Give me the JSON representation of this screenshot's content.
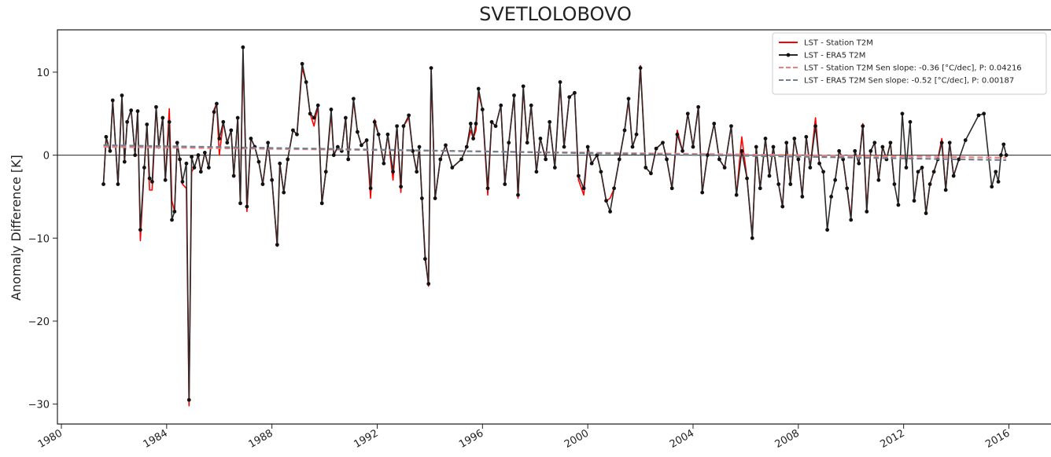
{
  "chart_data": {
    "type": "line",
    "title": "SVETLOLOBOVO",
    "y_label": "Anomaly Difference [K]",
    "x": [
      1981.6,
      1981.7,
      1981.85,
      1981.95,
      1982.15,
      1982.3,
      1982.4,
      1982.5,
      1982.65,
      1982.8,
      1982.9,
      1983.0,
      1983.15,
      1983.25,
      1983.35,
      1983.45,
      1983.6,
      1983.7,
      1983.85,
      1983.95,
      1984.1,
      1984.2,
      1984.3,
      1984.4,
      1984.5,
      1984.6,
      1984.75,
      1984.85,
      1984.95,
      1985.05,
      1985.2,
      1985.3,
      1985.45,
      1985.6,
      1985.8,
      1985.9,
      1986.0,
      1986.15,
      1986.3,
      1986.45,
      1986.55,
      1986.7,
      1986.8,
      1986.9,
      1987.05,
      1987.2,
      1987.35,
      1987.5,
      1987.65,
      1987.85,
      1988.0,
      1988.2,
      1988.3,
      1988.45,
      1988.6,
      1988.8,
      1988.95,
      1989.15,
      1989.3,
      1989.45,
      1989.6,
      1989.75,
      1989.9,
      1990.05,
      1990.25,
      1990.35,
      1990.5,
      1990.65,
      1990.8,
      1990.9,
      1991.1,
      1991.25,
      1991.4,
      1991.6,
      1991.75,
      1991.9,
      1992.05,
      1992.25,
      1992.4,
      1992.6,
      1992.75,
      1992.9,
      1993.0,
      1993.2,
      1993.35,
      1993.5,
      1993.6,
      1993.7,
      1993.82,
      1993.95,
      1994.05,
      1994.2,
      1994.4,
      1994.6,
      1994.85,
      1995.2,
      1995.4,
      1995.55,
      1995.65,
      1995.75,
      1995.85,
      1996.0,
      1996.2,
      1996.35,
      1996.5,
      1996.7,
      1996.85,
      1997.0,
      1997.2,
      1997.35,
      1997.55,
      1997.7,
      1997.85,
      1998.05,
      1998.2,
      1998.4,
      1998.55,
      1998.75,
      1998.95,
      1999.1,
      1999.3,
      1999.5,
      1999.65,
      1999.85,
      2000.0,
      2000.15,
      2000.35,
      2000.5,
      2000.7,
      2000.85,
      2001.0,
      2001.2,
      2001.4,
      2001.55,
      2001.7,
      2001.85,
      2002.0,
      2002.2,
      2002.4,
      2002.6,
      2002.85,
      2003.0,
      2003.2,
      2003.4,
      2003.6,
      2003.8,
      2004.0,
      2004.2,
      2004.35,
      2004.55,
      2004.8,
      2005.0,
      2005.2,
      2005.45,
      2005.65,
      2005.85,
      2006.05,
      2006.25,
      2006.4,
      2006.55,
      2006.75,
      2006.9,
      2007.05,
      2007.25,
      2007.4,
      2007.55,
      2007.7,
      2007.85,
      2008.0,
      2008.15,
      2008.3,
      2008.45,
      2008.65,
      2008.8,
      2008.95,
      2009.1,
      2009.25,
      2009.4,
      2009.55,
      2009.7,
      2009.85,
      2010.0,
      2010.15,
      2010.3,
      2010.45,
      2010.6,
      2010.75,
      2010.9,
      2011.05,
      2011.2,
      2011.35,
      2011.5,
      2011.65,
      2011.8,
      2011.95,
      2012.1,
      2012.25,
      2012.4,
      2012.55,
      2012.7,
      2012.85,
      2013.0,
      2013.15,
      2013.3,
      2013.45,
      2013.6,
      2013.75,
      2013.9,
      2014.1,
      2014.35,
      2014.85,
      2015.05,
      2015.35,
      2015.5,
      2015.6,
      2015.7,
      2015.8,
      2015.9
    ],
    "series": [
      {
        "name": "LST - Station T2M",
        "color": "#ff0000",
        "markers": false,
        "values": [
          -3.5,
          2.0,
          0.5,
          6.5,
          -3.5,
          7.0,
          -0.8,
          4.0,
          5.5,
          0.0,
          5.3,
          -10.3,
          -1.5,
          3.7,
          -4.2,
          -4.2,
          5.8,
          1.0,
          4.5,
          -3.0,
          5.6,
          -5.5,
          -6.8,
          1.5,
          -0.5,
          -3.5,
          -4.0,
          -30.2,
          -2.0,
          -1.5,
          0.0,
          -2.0,
          0.3,
          -1.5,
          5.5,
          6.2,
          0.0,
          4.0,
          1.5,
          3.0,
          -2.5,
          4.5,
          -5.8,
          12.3,
          -6.8,
          2.0,
          1.0,
          -0.8,
          -3.5,
          1.5,
          -3.0,
          -11.0,
          -1.0,
          -4.5,
          -0.5,
          3.0,
          2.5,
          10.5,
          8.8,
          5.0,
          3.5,
          6.0,
          -5.8,
          -2.0,
          5.0,
          0.0,
          1.0,
          0.5,
          4.5,
          -0.5,
          6.5,
          2.8,
          1.2,
          1.8,
          -5.2,
          4.3,
          2.5,
          -1.0,
          2.5,
          -3.0,
          3.5,
          -4.5,
          3.5,
          4.5,
          0.5,
          -2.0,
          1.0,
          -5.2,
          -12.0,
          -15.8,
          10.2,
          -5.2,
          -0.5,
          1.2,
          -1.5,
          -0.5,
          1.0,
          3.0,
          2.0,
          3.0,
          7.5,
          5.5,
          -4.8,
          4.0,
          3.5,
          6.0,
          -3.5,
          1.5,
          7.2,
          -5.2,
          8.0,
          1.5,
          6.0,
          -2.0,
          2.0,
          -0.5,
          4.0,
          -1.5,
          8.5,
          1.0,
          7.0,
          7.5,
          -3.0,
          -4.8,
          1.0,
          -1.0,
          0.0,
          -2.0,
          -5.5,
          -5.2,
          -4.0,
          -0.5,
          3.0,
          6.5,
          1.0,
          2.5,
          10.8,
          -1.5,
          -2.2,
          0.8,
          1.5,
          -0.5,
          -4.0,
          3.0,
          0.5,
          5.0,
          1.0,
          5.8,
          -4.5,
          0.0,
          3.8,
          -0.5,
          -1.5,
          3.5,
          -4.8,
          2.2,
          -2.8,
          -9.8,
          1.0,
          -4.0,
          2.0,
          -2.5,
          1.0,
          -3.5,
          -6.2,
          1.5,
          -3.5,
          2.0,
          -0.5,
          -5.0,
          2.2,
          -1.5,
          4.5,
          -1.0,
          -2.0,
          null,
          null,
          -3.0,
          0.5,
          -0.5,
          -4.0,
          -7.5,
          0.5,
          -1.0,
          3.8,
          -6.5,
          0.5,
          1.5,
          -3.0,
          1.0,
          -0.5,
          1.5,
          -3.5,
          null,
          null,
          null,
          null,
          -5.5,
          -2.0,
          -1.5,
          -7.0,
          -3.5,
          -2.0,
          -0.5,
          2.0,
          -4.2,
          1.5,
          -2.5,
          -0.5,
          null,
          null,
          null,
          null,
          null,
          null,
          null,
          null,
          null
        ]
      },
      {
        "name": "LST - ERA5 T2M",
        "color": "#2b2b2b",
        "markers": true,
        "values": [
          -3.5,
          2.2,
          0.5,
          6.6,
          -3.5,
          7.2,
          -0.8,
          4.0,
          5.4,
          0.0,
          5.3,
          -9.0,
          -1.5,
          3.7,
          -2.8,
          -3.2,
          5.8,
          1.0,
          4.5,
          -3.0,
          4.0,
          -7.8,
          -6.8,
          1.5,
          -0.5,
          -3.2,
          -1.0,
          -29.5,
          -0.2,
          -1.5,
          0.0,
          -2.0,
          0.3,
          -1.5,
          5.2,
          6.2,
          2.0,
          4.0,
          1.5,
          3.0,
          -2.5,
          4.5,
          -5.8,
          13.0,
          -6.2,
          2.0,
          1.0,
          -0.8,
          -3.5,
          1.5,
          -3.0,
          -10.8,
          -1.0,
          -4.5,
          -0.5,
          3.0,
          2.5,
          11.0,
          8.8,
          5.0,
          4.5,
          6.0,
          -5.8,
          -2.0,
          5.5,
          0.0,
          1.0,
          0.5,
          4.5,
          -0.5,
          6.8,
          2.8,
          1.2,
          1.8,
          -4.0,
          4.0,
          2.5,
          -1.0,
          2.5,
          -2.0,
          3.5,
          -3.8,
          3.5,
          4.8,
          0.5,
          -2.0,
          1.0,
          -5.2,
          -12.5,
          -15.5,
          10.5,
          -5.2,
          -0.5,
          1.2,
          -1.5,
          -0.5,
          1.0,
          3.8,
          2.0,
          3.8,
          8.0,
          5.5,
          -4.0,
          4.0,
          3.5,
          6.0,
          -3.5,
          1.5,
          7.2,
          -4.8,
          8.3,
          1.5,
          6.0,
          -2.0,
          2.0,
          -0.5,
          4.0,
          -1.5,
          8.8,
          1.0,
          7.0,
          7.5,
          -2.5,
          -4.0,
          1.0,
          -1.0,
          0.0,
          -2.0,
          -5.5,
          -6.8,
          -4.0,
          -0.5,
          3.0,
          6.8,
          1.0,
          2.5,
          10.5,
          -1.5,
          -2.2,
          0.8,
          1.5,
          -0.5,
          -4.0,
          2.5,
          0.5,
          5.0,
          1.0,
          5.8,
          -4.5,
          0.0,
          3.8,
          -0.5,
          -1.5,
          3.5,
          -4.8,
          0.5,
          -2.8,
          -10.0,
          1.0,
          -4.0,
          2.0,
          -2.5,
          1.0,
          -3.5,
          -6.2,
          1.5,
          -3.5,
          2.0,
          -0.5,
          -5.0,
          2.2,
          -1.5,
          3.5,
          -1.0,
          -2.0,
          -9.0,
          -5.0,
          -3.0,
          0.5,
          -0.5,
          -4.0,
          -7.8,
          0.5,
          -1.0,
          3.5,
          -6.8,
          0.5,
          1.5,
          -3.0,
          1.0,
          -0.5,
          1.5,
          -3.5,
          -6.0,
          5.0,
          -1.5,
          4.0,
          -5.5,
          -2.0,
          -1.5,
          -7.0,
          -3.5,
          -2.0,
          -0.5,
          1.5,
          -4.2,
          1.5,
          -2.5,
          -0.5,
          1.8,
          4.8,
          5.0,
          -3.8,
          -2.0,
          -3.2,
          0.0,
          1.3,
          0.0
        ]
      }
    ],
    "trends": [
      {
        "name": "LST - Station T2M  Sen slope: -0.36 [°C/dec], P: 0.04216",
        "color": "#f08080",
        "x": [
          1981.6,
          2015.9
        ],
        "values": [
          1.0,
          -0.3
        ]
      },
      {
        "name": "LST - ERA5 T2M Sen slope: -0.52 [°C/dec], P: 0.00187",
        "color": "#708090",
        "x": [
          1981.6,
          2015.9
        ],
        "values": [
          1.2,
          -0.6
        ]
      }
    ],
    "hline": 0,
    "xlim": [
      1979.85,
      2017.6
    ],
    "xticks": [
      1980,
      1984,
      1988,
      1992,
      1996,
      2000,
      2004,
      2008,
      2012,
      2016
    ],
    "ylim": [
      -32.4,
      15.1
    ],
    "yticks": [
      {
        "value": -30,
        "label": "−30"
      },
      {
        "value": -20,
        "label": "−20"
      },
      {
        "value": -10,
        "label": "−10"
      },
      0,
      10
    ],
    "legend": "upper right"
  }
}
